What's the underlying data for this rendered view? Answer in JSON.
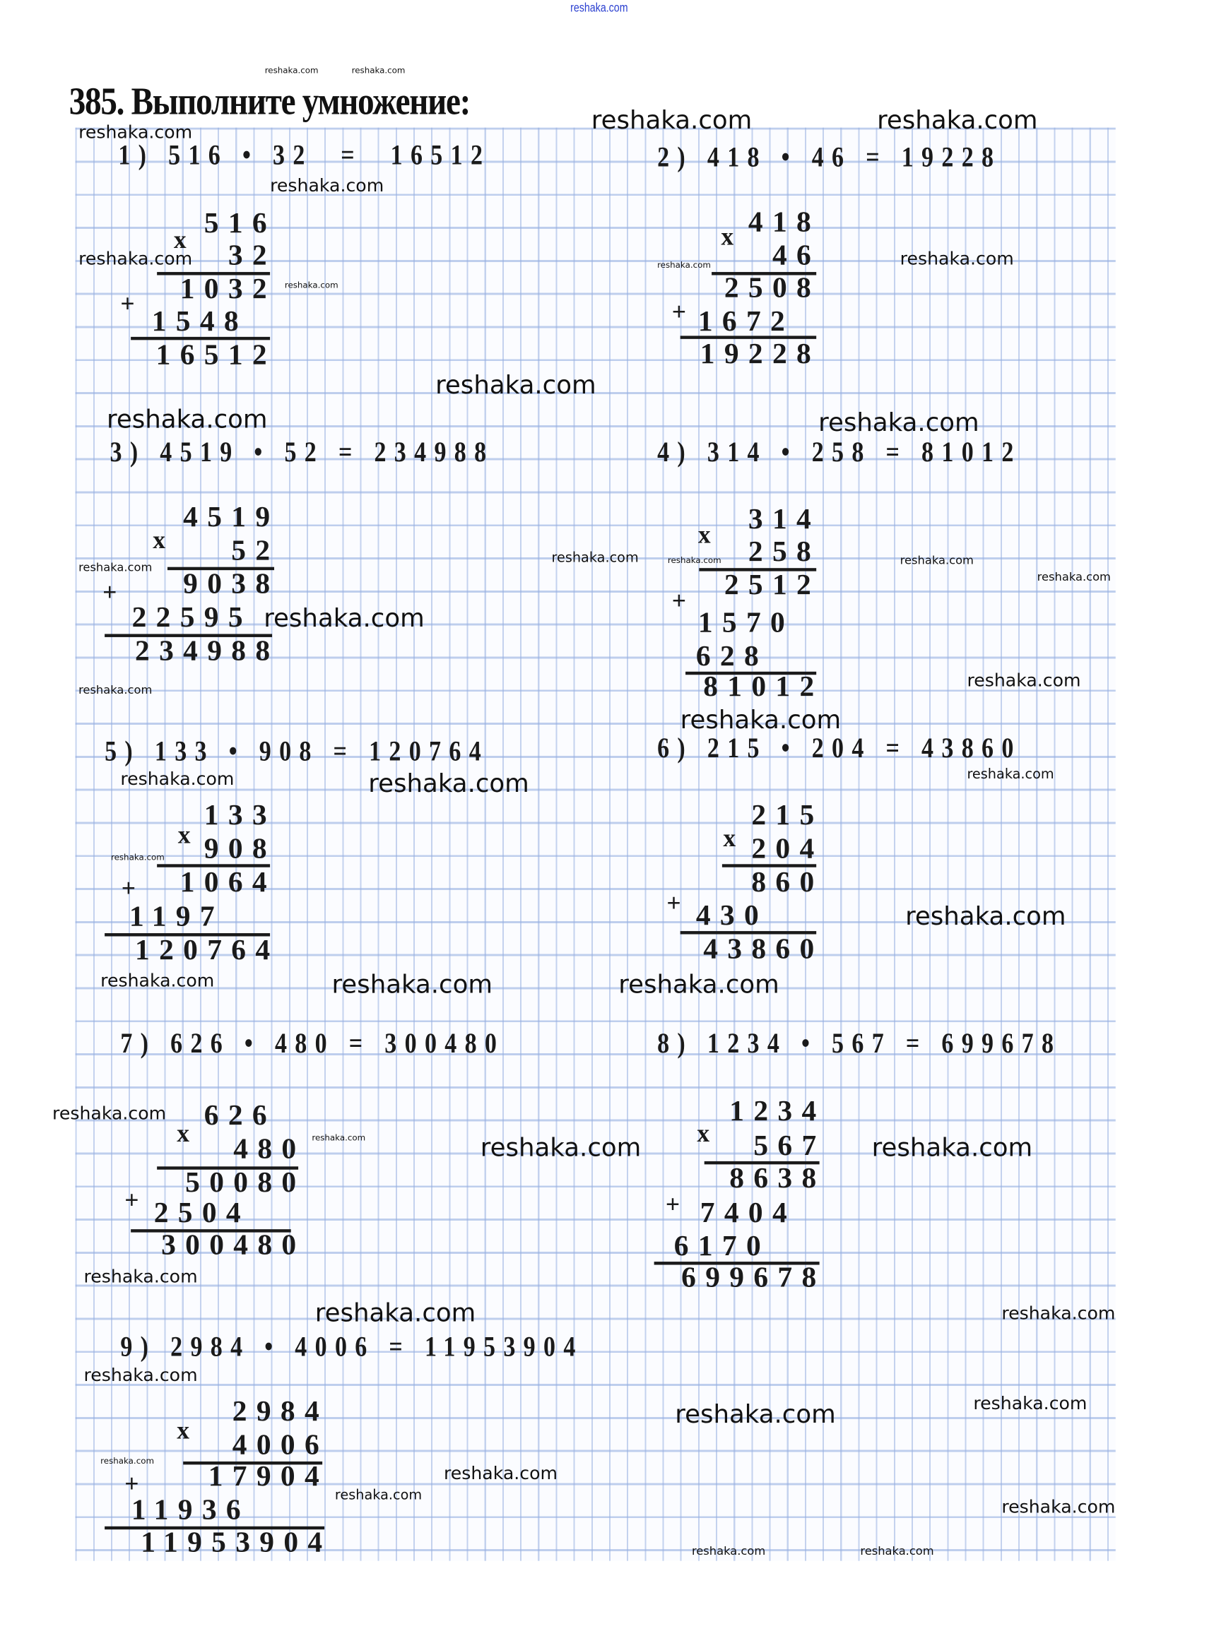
{
  "watermark": "reshaka.com",
  "title": "385. Выполните умножение:",
  "problems": [
    {
      "header": "1) 516 • 32  =  16512",
      "rows": [
        "516",
        "32",
        "1032",
        "1548",
        "16512"
      ]
    },
    {
      "header": "2) 418 • 46 = 19228",
      "rows": [
        "418",
        "46",
        "2508",
        "1672",
        "19228"
      ]
    },
    {
      "header": "3) 4519 • 52 = 234988",
      "rows": [
        "4519",
        "52",
        "9038",
        "22595",
        "234988"
      ]
    },
    {
      "header": "4) 314 • 258 = 81012",
      "rows": [
        "314",
        "258",
        "2512",
        "1570",
        "628",
        "81012"
      ]
    },
    {
      "header": "5) 133 • 908 = 120764",
      "rows": [
        "133",
        "908",
        "1064",
        "1197",
        "120764"
      ]
    },
    {
      "header": "6) 215 • 204 = 43860",
      "rows": [
        "215",
        "204",
        "860",
        "430",
        "43860"
      ]
    },
    {
      "header": "7) 626 • 480 = 300480",
      "rows": [
        "626",
        "480",
        "50080",
        "2504",
        "300480"
      ]
    },
    {
      "header": "8) 1234 • 567 = 699678",
      "rows": [
        "1234",
        "567",
        "8638",
        "7404",
        "6170",
        "699678"
      ]
    },
    {
      "header": "9) 2984 • 4006 = 11953904",
      "rows": [
        "2984",
        "4006",
        "17904",
        "11936",
        "11953904"
      ]
    }
  ],
  "signs": {
    "times": "x",
    "plus": "+"
  }
}
